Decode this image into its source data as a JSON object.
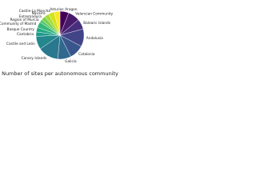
{
  "chart_data": {
    "type": "pie",
    "title": "Number of sites per autonomous community",
    "categories": [
      "Aragon",
      "Valencian Community",
      "Balearic Islands",
      "Andalusia",
      "Catalonia",
      "Galicia",
      "Canary Islands",
      "Castile and León",
      "Cantabria",
      "Basque Country",
      "Community of Madrid",
      "Region of Murcia",
      "Extremadura",
      "Navarre",
      "Castile-La Mancha",
      "Asturias"
    ],
    "values": [
      6,
      8,
      7,
      12,
      10,
      9,
      14,
      9,
      3,
      3,
      4,
      2,
      3,
      3,
      4,
      4
    ],
    "colors": [
      "#440154",
      "#481a6c",
      "#472f7d",
      "#414487",
      "#39568c",
      "#31688e",
      "#2a788e",
      "#23888e",
      "#1f988b",
      "#22a884",
      "#35b779",
      "#54c568",
      "#7ad151",
      "#a5db36",
      "#d2e21b",
      "#fde725"
    ]
  }
}
